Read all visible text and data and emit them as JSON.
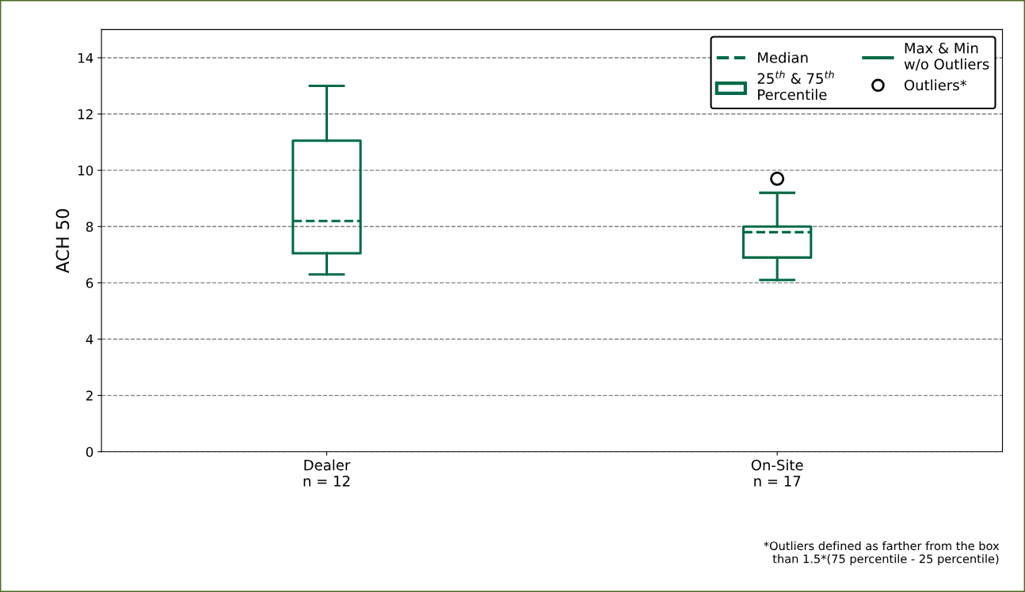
{
  "chart_data": {
    "type": "box",
    "ylabel": "ACH 50",
    "categories": [
      "Dealer\nn = 12",
      "On-Site\nn = 17"
    ],
    "color": "#006b45",
    "boxes": [
      {
        "low": 6.3,
        "q1": 7.05,
        "median": 8.2,
        "q3": 11.05,
        "high": 13.0
      },
      {
        "low": 6.1,
        "q1": 6.9,
        "median": 7.8,
        "q3": 8.0,
        "high": 9.2,
        "outliers": [
          9.7
        ]
      }
    ],
    "ylim": [
      0,
      15
    ],
    "yticks": [
      0,
      2,
      4,
      6,
      8,
      10,
      12,
      14
    ],
    "grid": "y",
    "annotations": [
      "Median",
      "25$^{th}$ & 75$^{th}$\nPercentile",
      "Max & Min\nw/o Outliers",
      "Outliers*",
      "*Outliers defined as farther from the box\nthan 1.5*(75 percentile - 25 percentile)"
    ]
  }
}
